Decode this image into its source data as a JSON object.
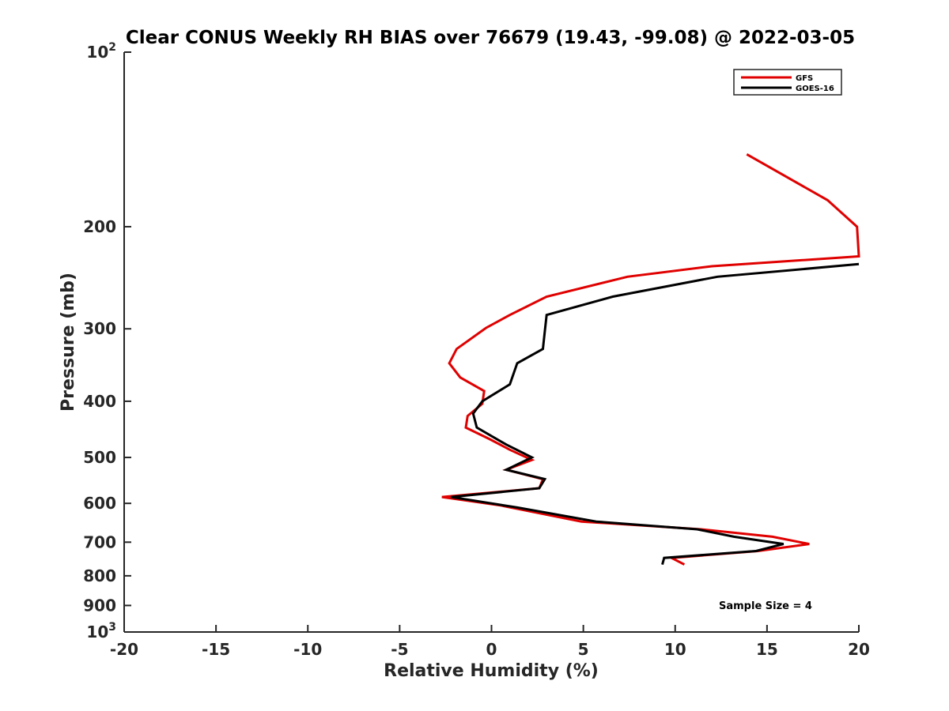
{
  "chart_data": {
    "type": "line",
    "title": "Clear CONUS Weekly RH BIAS over 76679 (19.43, -99.08) @ 2022-03-05",
    "xlabel": "Relative Humidity (%)",
    "ylabel": "Pressure (mb)",
    "xlim": [
      -20,
      20
    ],
    "ylim": [
      100,
      1000
    ],
    "y_scale": "log",
    "y_reversed": true,
    "x_ticks": [
      "-20",
      "-15",
      "-10",
      "-5",
      "0",
      "5",
      "10",
      "15",
      "20"
    ],
    "x_tick_values": [
      -20,
      -15,
      -10,
      -5,
      0,
      5,
      10,
      15,
      20
    ],
    "y_ticks": [
      {
        "value": 100,
        "label": "10",
        "sup": "2"
      },
      {
        "value": 200,
        "label": "200",
        "sup": ""
      },
      {
        "value": 300,
        "label": "300",
        "sup": ""
      },
      {
        "value": 400,
        "label": "400",
        "sup": ""
      },
      {
        "value": 500,
        "label": "500",
        "sup": ""
      },
      {
        "value": 600,
        "label": "600",
        "sup": ""
      },
      {
        "value": 700,
        "label": "700",
        "sup": ""
      },
      {
        "value": 800,
        "label": "800",
        "sup": ""
      },
      {
        "value": 900,
        "label": "900",
        "sup": ""
      },
      {
        "value": 1000,
        "label": "10",
        "sup": "3"
      }
    ],
    "legend_position": "top-right",
    "grid": false,
    "annotation": "Sample Size = 4",
    "series": [
      {
        "name": "GFS",
        "color": "#e00000",
        "points": [
          {
            "x": 13.9,
            "p": 150
          },
          {
            "x": 18.3,
            "p": 180
          },
          {
            "x": 19.9,
            "p": 200
          },
          {
            "x": 20.0,
            "p": 225
          },
          {
            "x": 12.0,
            "p": 234
          },
          {
            "x": 7.4,
            "p": 244
          },
          {
            "x": 3.0,
            "p": 264
          },
          {
            "x": 1.0,
            "p": 284
          },
          {
            "x": -0.3,
            "p": 299
          },
          {
            "x": -1.9,
            "p": 325
          },
          {
            "x": -2.3,
            "p": 344
          },
          {
            "x": -1.7,
            "p": 364
          },
          {
            "x": -0.4,
            "p": 384
          },
          {
            "x": -0.5,
            "p": 404
          },
          {
            "x": -1.3,
            "p": 424
          },
          {
            "x": -1.4,
            "p": 444
          },
          {
            "x": -0.1,
            "p": 465
          },
          {
            "x": 1.0,
            "p": 485
          },
          {
            "x": 2.2,
            "p": 505
          },
          {
            "x": 0.8,
            "p": 525
          },
          {
            "x": 2.8,
            "p": 545
          },
          {
            "x": 2.6,
            "p": 565
          },
          {
            "x": -2.7,
            "p": 585
          },
          {
            "x": 0.5,
            "p": 605
          },
          {
            "x": 4.9,
            "p": 645
          },
          {
            "x": 11.4,
            "p": 665
          },
          {
            "x": 15.3,
            "p": 685
          },
          {
            "x": 17.3,
            "p": 705
          },
          {
            "x": 14.5,
            "p": 725
          },
          {
            "x": 9.8,
            "p": 745
          },
          {
            "x": 10.5,
            "p": 765
          }
        ]
      },
      {
        "name": "GOES-16",
        "color": "#000000",
        "points": [
          {
            "x": 20.0,
            "p": 232
          },
          {
            "x": 12.3,
            "p": 244
          },
          {
            "x": 6.6,
            "p": 264
          },
          {
            "x": 3.0,
            "p": 284
          },
          {
            "x": 2.9,
            "p": 303
          },
          {
            "x": 2.8,
            "p": 325
          },
          {
            "x": 1.4,
            "p": 344
          },
          {
            "x": 1.0,
            "p": 374
          },
          {
            "x": -0.5,
            "p": 400
          },
          {
            "x": -1.0,
            "p": 420
          },
          {
            "x": -0.8,
            "p": 444
          },
          {
            "x": 0.8,
            "p": 475
          },
          {
            "x": 2.2,
            "p": 500
          },
          {
            "x": 0.8,
            "p": 525
          },
          {
            "x": 2.9,
            "p": 545
          },
          {
            "x": 2.6,
            "p": 565
          },
          {
            "x": -2.2,
            "p": 585
          },
          {
            "x": 1.4,
            "p": 610
          },
          {
            "x": 5.7,
            "p": 645
          },
          {
            "x": 11.2,
            "p": 665
          },
          {
            "x": 13.2,
            "p": 685
          },
          {
            "x": 15.9,
            "p": 705
          },
          {
            "x": 14.4,
            "p": 725
          },
          {
            "x": 9.4,
            "p": 745
          },
          {
            "x": 9.3,
            "p": 765
          }
        ]
      }
    ]
  }
}
